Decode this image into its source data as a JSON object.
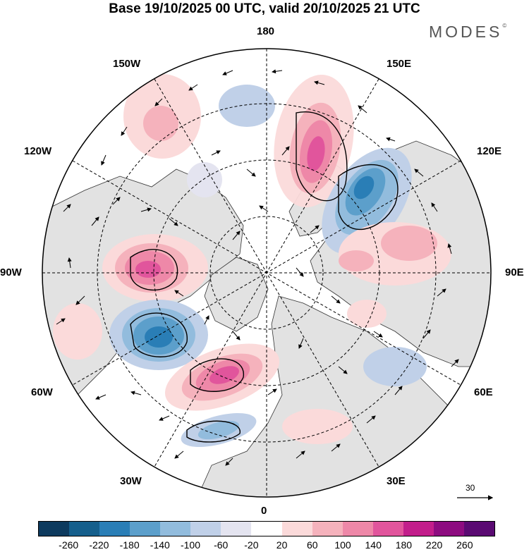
{
  "title": "Base 19/10/2025 00 UTC, valid 20/10/2025 21 UTC",
  "brand": "MODES",
  "brand_mark": "©",
  "longitude_labels": {
    "top": "180",
    "bottom": "0",
    "left": "90W",
    "right": "90E",
    "nw": "150W",
    "ne": "150E",
    "wnw": "120W",
    "ene": "120E",
    "wsw": "60W",
    "ese": "60E",
    "sw": "30W",
    "se": "30E"
  },
  "vector_scale": {
    "label": "30"
  },
  "colorbar": {
    "colors": [
      "#0d3a5e",
      "#155f8c",
      "#2a7eb6",
      "#5c9fcb",
      "#92bcdd",
      "#c0d0e8",
      "#e4e4f0",
      "#ffffff",
      "#fbdada",
      "#f5b2bc",
      "#ee88a8",
      "#e1559c",
      "#c21e8b",
      "#8d0c80",
      "#5a0a72"
    ],
    "ticks": [
      "-260",
      "-220",
      "-180",
      "-140",
      "-100",
      "-60",
      "-20",
      "20",
      "60",
      "100",
      "140",
      "180",
      "220",
      "260"
    ]
  },
  "anomalies": [
    {
      "name": "positive-anomaly-bering",
      "sign": "positive",
      "peak": 180
    },
    {
      "name": "negative-anomaly-siberia",
      "sign": "negative",
      "peak": -220
    },
    {
      "name": "positive-anomaly-canada",
      "sign": "positive",
      "peak": 150
    },
    {
      "name": "negative-anomaly-labrador",
      "sign": "negative",
      "peak": -230
    },
    {
      "name": "positive-anomaly-atlantic",
      "sign": "positive",
      "peak": 160
    },
    {
      "name": "negative-anomaly-eastern-atlantic",
      "sign": "negative",
      "peak": -110
    },
    {
      "name": "positive-anomaly-western-siberia",
      "sign": "positive",
      "peak": 110
    },
    {
      "name": "positive-anomaly-north-pacific",
      "sign": "positive",
      "peak": 90
    },
    {
      "name": "negative-anomaly-europe",
      "sign": "negative",
      "peak": -70
    }
  ]
}
